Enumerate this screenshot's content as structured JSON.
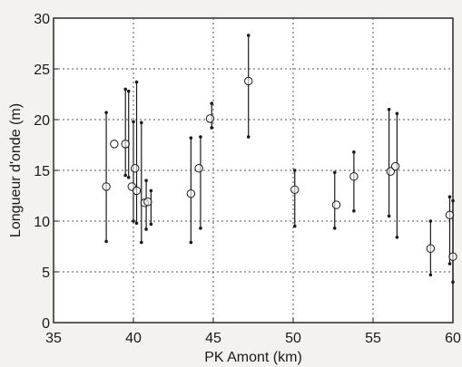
{
  "chart_data": {
    "type": "scatter",
    "xlabel": "PK Amont (km)",
    "ylabel": "Longueur d'onde (m)",
    "xlim": [
      35,
      60
    ],
    "ylim": [
      0,
      30
    ],
    "xticks": [
      "35",
      "40",
      "45",
      "50",
      "55",
      "60"
    ],
    "yticks": [
      "0",
      "5",
      "10",
      "15",
      "20",
      "25",
      "30"
    ],
    "grid": true,
    "series": [
      {
        "style": "open-circle-mean",
        "points": [
          {
            "x": 38.3,
            "y": 13.4
          },
          {
            "x": 38.8,
            "y": 17.6
          },
          {
            "x": 39.5,
            "y": 17.6
          },
          {
            "x": 39.9,
            "y": 13.4
          },
          {
            "x": 40.1,
            "y": 15.2
          },
          {
            "x": 40.2,
            "y": 13.0
          },
          {
            "x": 40.7,
            "y": 11.8
          },
          {
            "x": 40.9,
            "y": 11.9
          },
          {
            "x": 43.6,
            "y": 12.7
          },
          {
            "x": 44.1,
            "y": 15.2
          },
          {
            "x": 44.8,
            "y": 20.1
          },
          {
            "x": 47.2,
            "y": 23.8
          },
          {
            "x": 50.1,
            "y": 13.1
          },
          {
            "x": 52.7,
            "y": 11.6
          },
          {
            "x": 53.8,
            "y": 14.4
          },
          {
            "x": 56.1,
            "y": 14.9
          },
          {
            "x": 56.4,
            "y": 15.4
          },
          {
            "x": 58.6,
            "y": 7.3
          },
          {
            "x": 59.8,
            "y": 10.6
          },
          {
            "x": 60.0,
            "y": 6.5
          }
        ]
      },
      {
        "style": "range-bar-with-dots",
        "ranges": [
          {
            "x": 38.3,
            "min": 8.0,
            "max": 20.7
          },
          {
            "x": 39.5,
            "min": 14.5,
            "max": 23.0
          },
          {
            "x": 39.7,
            "min": 14.3,
            "max": 22.8
          },
          {
            "x": 40.0,
            "min": 10.0,
            "max": 19.8
          },
          {
            "x": 40.2,
            "min": 9.8,
            "max": 23.7
          },
          {
            "x": 40.5,
            "min": 7.9,
            "max": 19.7
          },
          {
            "x": 40.8,
            "min": 9.2,
            "max": 14.0
          },
          {
            "x": 41.1,
            "min": 9.7,
            "max": 13.0
          },
          {
            "x": 43.6,
            "min": 7.9,
            "max": 18.2
          },
          {
            "x": 44.2,
            "min": 9.3,
            "max": 18.3
          },
          {
            "x": 44.9,
            "min": 19.2,
            "max": 21.6
          },
          {
            "x": 47.2,
            "min": 18.3,
            "max": 28.3
          },
          {
            "x": 50.1,
            "min": 9.5,
            "max": 15.0
          },
          {
            "x": 52.6,
            "min": 9.3,
            "max": 14.8
          },
          {
            "x": 53.8,
            "min": 11.0,
            "max": 16.8
          },
          {
            "x": 56.0,
            "min": 10.5,
            "max": 21.0
          },
          {
            "x": 56.5,
            "min": 8.4,
            "max": 20.6
          },
          {
            "x": 58.6,
            "min": 4.7,
            "max": 10.0
          },
          {
            "x": 59.8,
            "min": 5.8,
            "max": 12.4
          },
          {
            "x": 60.0,
            "min": 4.0,
            "max": 12.0
          }
        ]
      }
    ]
  }
}
